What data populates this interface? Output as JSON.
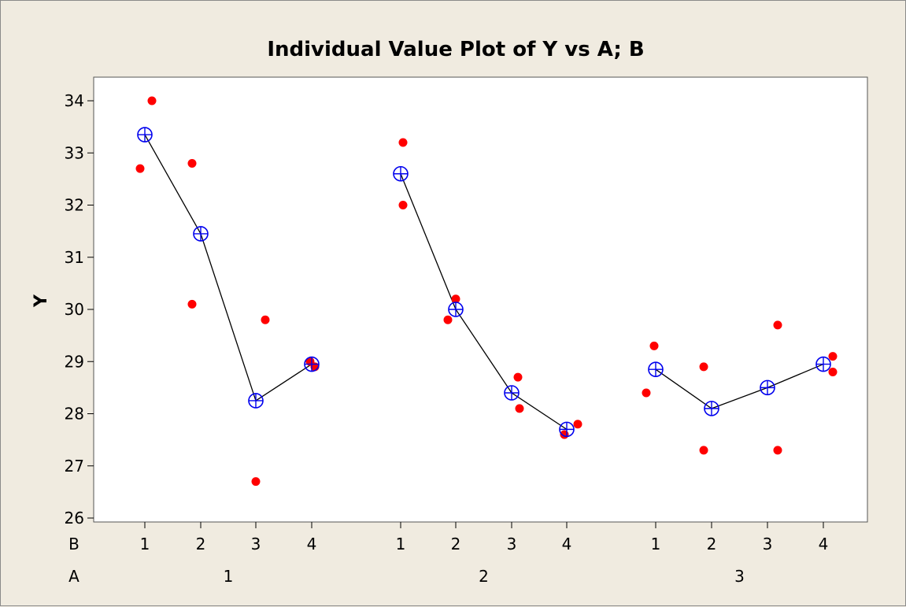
{
  "chart_data": {
    "type": "scatter",
    "title": "Individual Value Plot of Y vs A; B",
    "ylabel": "Y",
    "xlabel": "",
    "ylim": [
      25.85,
      34.45
    ],
    "yticks": [
      26,
      27,
      28,
      29,
      30,
      31,
      32,
      33,
      34
    ],
    "factor_labels": {
      "inner": "B",
      "outer": "A"
    },
    "groups": [
      {
        "A": "1",
        "levels": [
          {
            "B": "1",
            "values": [
              32.7,
              34.0
            ],
            "mean": 33.35
          },
          {
            "B": "2",
            "values": [
              32.8,
              30.1
            ],
            "mean": 31.45
          },
          {
            "B": "3",
            "values": [
              26.7,
              29.8
            ],
            "mean": 28.25
          },
          {
            "B": "4",
            "values": [
              29.0,
              28.9
            ],
            "mean": 28.95
          }
        ]
      },
      {
        "A": "2",
        "levels": [
          {
            "B": "1",
            "values": [
              33.2,
              32.0
            ],
            "mean": 32.6
          },
          {
            "B": "2",
            "values": [
              29.8,
              30.2
            ],
            "mean": 30.0
          },
          {
            "B": "3",
            "values": [
              28.7,
              28.1
            ],
            "mean": 28.4
          },
          {
            "B": "4",
            "values": [
              27.6,
              27.8
            ],
            "mean": 27.7
          }
        ]
      },
      {
        "A": "3",
        "levels": [
          {
            "B": "1",
            "values": [
              28.4,
              29.3
            ],
            "mean": 28.85
          },
          {
            "B": "2",
            "values": [
              28.9,
              27.3
            ],
            "mean": 28.1
          },
          {
            "B": "3",
            "values": [
              29.7,
              27.3
            ],
            "mean": 28.5
          },
          {
            "B": "4",
            "values": [
              29.1,
              28.8
            ],
            "mean": 28.95
          }
        ]
      }
    ],
    "colors": {
      "points": "#ff0000",
      "mean_symbol": "#0000ee",
      "connect_line": "#000000"
    }
  }
}
